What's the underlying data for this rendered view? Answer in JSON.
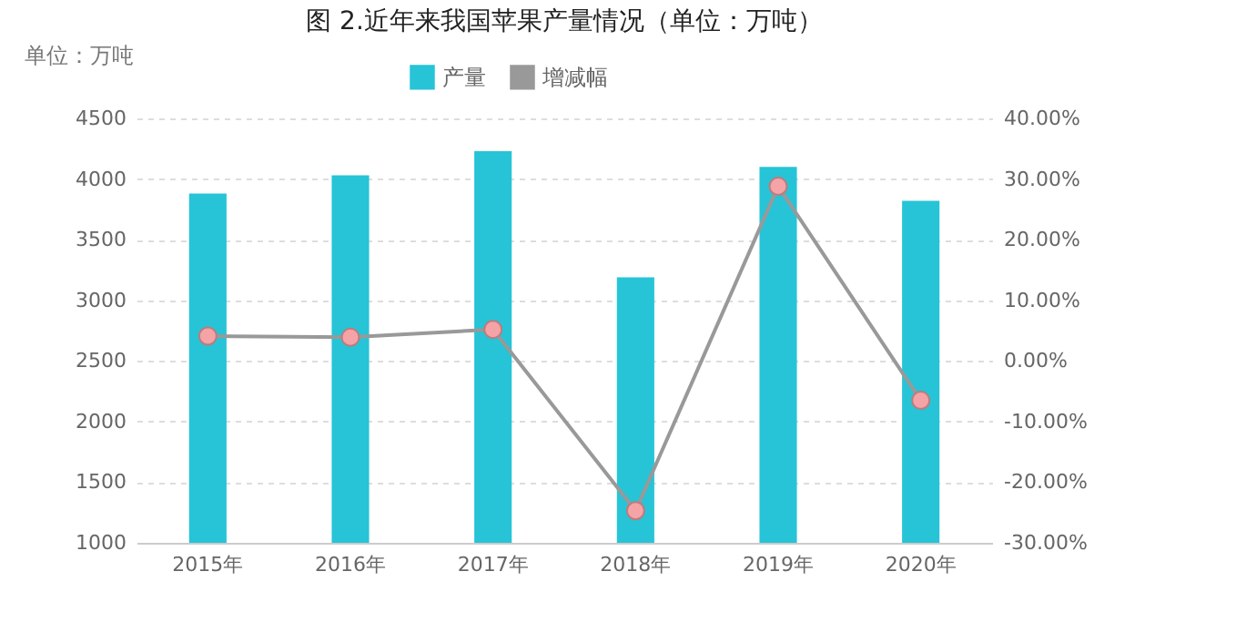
{
  "chart_data": {
    "type": "bar",
    "title": "图 2.近年来我国苹果产量情况（单位：万吨）",
    "ylabel": "单位：万吨",
    "categories": [
      "2015年",
      "2016年",
      "2017年",
      "2018年",
      "2019年",
      "2020年"
    ],
    "series": [
      {
        "name": "产量",
        "color": "#26c4d6",
        "values": [
          3880,
          4030,
          4230,
          3190,
          4100,
          3820
        ]
      },
      {
        "name": "增减幅",
        "type": "line",
        "axis": "y2",
        "color": "#999999",
        "marker": "circle",
        "values": [
          4.1,
          3.9,
          5.2,
          -24.7,
          28.8,
          -6.5
        ]
      }
    ],
    "ylim": [
      1000,
      4500
    ],
    "yticks": [
      1000,
      1500,
      2000,
      2500,
      3000,
      3500,
      4000,
      4500
    ],
    "y2lim": [
      -30,
      40
    ],
    "y2ticks": [
      {
        "value": -30,
        "label": "-30.00%"
      },
      {
        "value": -20,
        "label": "-20.00%"
      },
      {
        "value": -10,
        "label": "-10.00%"
      },
      {
        "value": 0,
        "label": "0.00%"
      },
      {
        "value": 10,
        "label": "10.00%"
      },
      {
        "value": 20,
        "label": "20.00%"
      },
      {
        "value": 30,
        "label": "30.00%"
      },
      {
        "value": 40,
        "label": "40.00%"
      }
    ],
    "grid": "y",
    "legend": "top"
  }
}
